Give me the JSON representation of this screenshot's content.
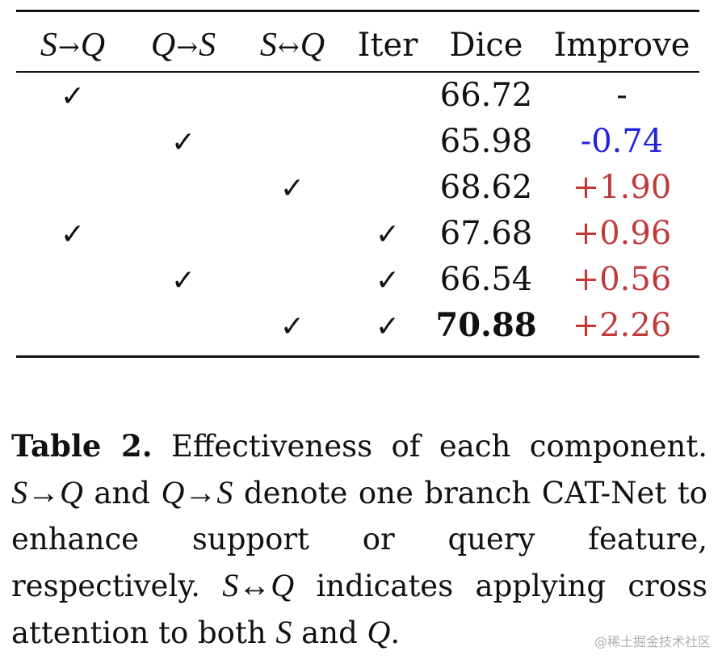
{
  "table": {
    "headers": {
      "s_to_q": {
        "left": "S",
        "op": "→",
        "right": "Q"
      },
      "q_to_s": {
        "left": "Q",
        "op": "→",
        "right": "S"
      },
      "s_both_q": {
        "left": "S",
        "op": "↔",
        "right": "Q"
      },
      "iter": "Iter",
      "dice": "Dice",
      "improve": "Improve"
    },
    "check_glyph": "✓",
    "rows": [
      {
        "s_to_q": true,
        "q_to_s": false,
        "s_both_q": false,
        "iter": false,
        "dice": "66.72",
        "improve": "-",
        "improve_kind": "neutral",
        "bold": false
      },
      {
        "s_to_q": false,
        "q_to_s": true,
        "s_both_q": false,
        "iter": false,
        "dice": "65.98",
        "improve": "-0.74",
        "improve_kind": "neg",
        "bold": false
      },
      {
        "s_to_q": false,
        "q_to_s": false,
        "s_both_q": true,
        "iter": false,
        "dice": "68.62",
        "improve": "+1.90",
        "improve_kind": "pos",
        "bold": false
      },
      {
        "s_to_q": true,
        "q_to_s": false,
        "s_both_q": false,
        "iter": true,
        "dice": "67.68",
        "improve": "+0.96",
        "improve_kind": "pos",
        "bold": false
      },
      {
        "s_to_q": false,
        "q_to_s": true,
        "s_both_q": false,
        "iter": true,
        "dice": "66.54",
        "improve": "+0.56",
        "improve_kind": "pos",
        "bold": false
      },
      {
        "s_to_q": false,
        "q_to_s": false,
        "s_both_q": true,
        "iter": true,
        "dice": "70.88",
        "improve": "+2.26",
        "improve_kind": "pos",
        "bold": true
      }
    ]
  },
  "colors": {
    "negative": "#2222dd",
    "positive": "#c0393b",
    "text": "#111111"
  },
  "caption": {
    "label": "Table 2.",
    "t1": " Effectiveness of each component. ",
    "m1": "S→Q",
    "t2": " and ",
    "m2": "Q→S",
    "t3": " denote one branch CAT-Net to enhance support or query feature, respectively. ",
    "m3": "S↔Q",
    "t4": " indicates applying cross attention to both ",
    "m4": "S",
    "t5": " and ",
    "m5": "Q",
    "t6": "."
  },
  "watermark": "@稀土掘金技术社区"
}
